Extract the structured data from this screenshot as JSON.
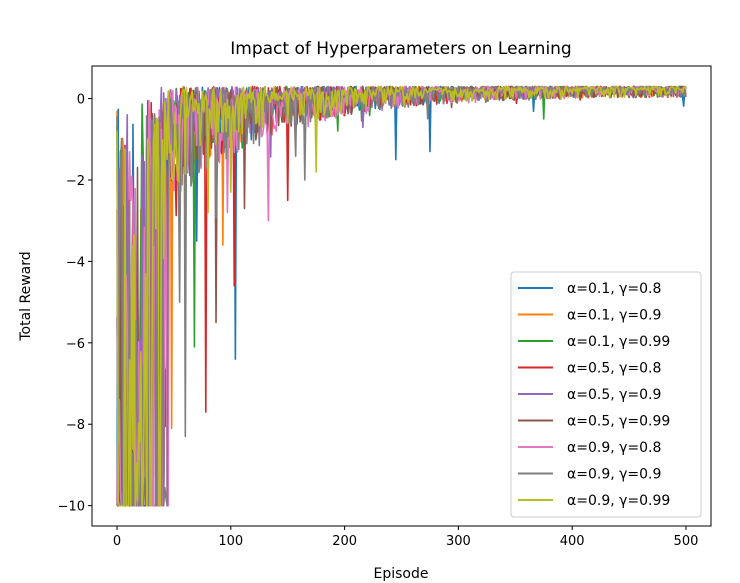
{
  "chart_data": {
    "type": "line",
    "title": "Impact of Hyperparameters on Learning",
    "xlabel": "Episode",
    "ylabel": "Total Reward",
    "xlim": [
      -22,
      522
    ],
    "ylim": [
      -10.5,
      0.8
    ],
    "xticks": [
      0,
      100,
      200,
      300,
      400,
      500
    ],
    "yticks": [
      -10,
      -8,
      -6,
      -4,
      -2,
      0
    ],
    "ytick_labels": [
      "−10",
      "−8",
      "−6",
      "−4",
      "−2",
      "0"
    ],
    "grid": false,
    "legend_position": "lower-right",
    "series": [
      {
        "name": "α=0.1, γ=0.8",
        "color": "#1f77b4",
        "seed": 11,
        "converge": 42,
        "noise": 1.2,
        "spikes": [
          [
            104,
            -6.4
          ],
          [
            245,
            -1.5
          ],
          [
            275,
            -1.3
          ],
          [
            70,
            -3.5
          ]
        ]
      },
      {
        "name": "α=0.1, γ=0.9",
        "color": "#ff7f0e",
        "seed": 23,
        "converge": 40,
        "noise": 1.1,
        "spikes": [
          [
            48,
            -8.1
          ],
          [
            93,
            -3.6
          ],
          [
            60,
            -5.0
          ]
        ]
      },
      {
        "name": "α=0.1, γ=0.99",
        "color": "#2ca02c",
        "seed": 37,
        "converge": 36,
        "noise": 1.0,
        "spikes": [
          [
            4,
            -1.2
          ],
          [
            68,
            -6.1
          ],
          [
            375,
            -0.5
          ]
        ]
      },
      {
        "name": "α=0.5, γ=0.8",
        "color": "#d62728",
        "seed": 41,
        "converge": 45,
        "noise": 1.2,
        "spikes": [
          [
            78,
            -7.7
          ],
          [
            103,
            -4.6
          ],
          [
            150,
            -2.5
          ],
          [
            30,
            -0.1
          ]
        ]
      },
      {
        "name": "α=0.5, γ=0.9",
        "color": "#9467bd",
        "seed": 53,
        "converge": 38,
        "noise": 1.0,
        "spikes": [
          [
            9,
            -0.4
          ],
          [
            40,
            -7.5
          ]
        ]
      },
      {
        "name": "α=0.5, γ=0.99",
        "color": "#8c564b",
        "seed": 61,
        "converge": 44,
        "noise": 1.2,
        "spikes": [
          [
            87,
            -5.5
          ],
          [
            112,
            -2.7
          ]
        ]
      },
      {
        "name": "α=0.9, γ=0.8",
        "color": "#e377c2",
        "seed": 71,
        "converge": 46,
        "noise": 1.3,
        "spikes": [
          [
            2,
            -7.4
          ],
          [
            133,
            -3.0
          ],
          [
            97,
            -2.8
          ]
        ]
      },
      {
        "name": "α=0.9, γ=0.9",
        "color": "#7f7f7f",
        "seed": 83,
        "converge": 48,
        "noise": 1.3,
        "spikes": [
          [
            60,
            -8.3
          ],
          [
            55,
            -5.0
          ],
          [
            165,
            -2.0
          ]
        ]
      },
      {
        "name": "α=0.9, γ=0.99",
        "color": "#bcbd22",
        "seed": 97,
        "converge": 42,
        "noise": 1.1,
        "spikes": [
          [
            100,
            -2.3
          ],
          [
            175,
            -1.8
          ],
          [
            80,
            -2.8
          ]
        ]
      }
    ],
    "episodes": 500
  }
}
